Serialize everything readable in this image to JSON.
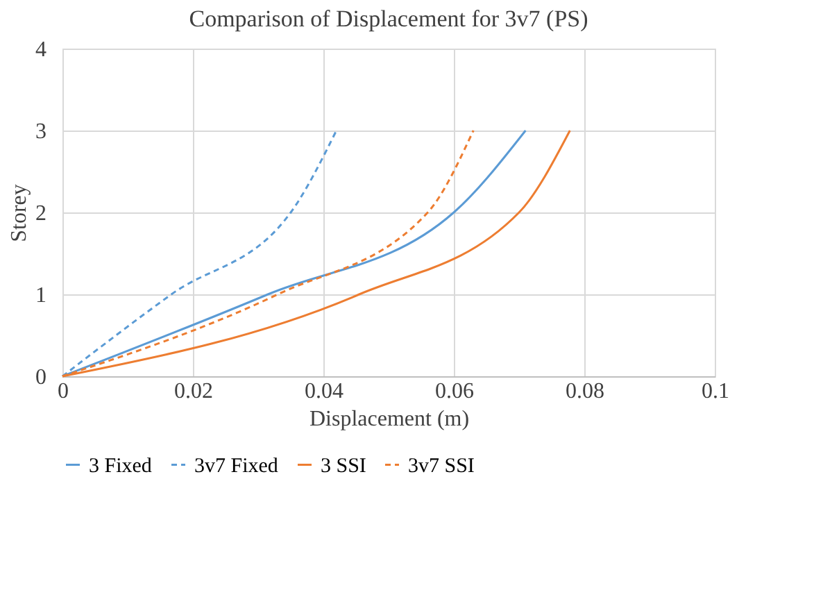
{
  "chart_data": {
    "type": "line",
    "title": "Comparison of Displacement for 3v7 (PS)",
    "xlabel": "Displacement (m)",
    "ylabel": "Storey",
    "xlim": [
      0,
      0.1
    ],
    "xticks": [
      0,
      0.02,
      0.04,
      0.06,
      0.08,
      0.1
    ],
    "ylim": [
      0,
      4
    ],
    "yticks": [
      0,
      1,
      2,
      3,
      4
    ],
    "grid": true,
    "legend": "bottom",
    "marker": "none",
    "series": [
      {
        "name": "3 Fixed",
        "color": "#5b9bd5",
        "line_style": "solid",
        "x": [
          0,
          0.0315,
          0.06,
          0.071
        ],
        "values": [
          0,
          1,
          2,
          3
        ]
      },
      {
        "name": "3v7 Fixed",
        "color": "#5b9bd5",
        "line_style": "dashed",
        "x": [
          0,
          0.0167,
          0.035,
          0.042
        ],
        "values": [
          0,
          1,
          2,
          3
        ]
      },
      {
        "name": "3 SSI",
        "color": "#ed7d31",
        "line_style": "solid",
        "x": [
          0,
          0.0455,
          0.07,
          0.0778
        ],
        "values": [
          0,
          1,
          2,
          3
        ]
      },
      {
        "name": "3v7 SSI",
        "color": "#ed7d31",
        "line_style": "dashed",
        "x": [
          0,
          0.033,
          0.056,
          0.063
        ],
        "values": [
          0,
          1,
          2,
          3
        ]
      }
    ]
  }
}
